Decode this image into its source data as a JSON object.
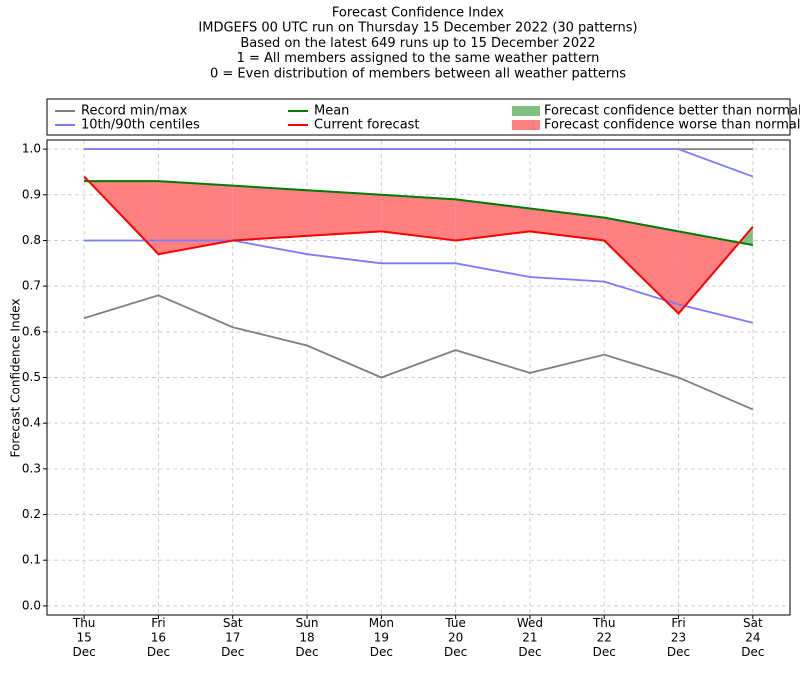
{
  "chart_data": {
    "type": "line",
    "title": "Forecast Confidence Index",
    "subtitles": [
      "IMDGEFS 00 UTC run on Thursday 15 December 2022 (30 patterns)",
      "Based on the latest 649 runs up to 15 December 2022",
      "1 = All members assigned to the same weather pattern",
      "0 = Even distribution of members between all weather patterns"
    ],
    "y_label": "Forecast Confidence Index",
    "categories": [
      "Thu 15 Dec",
      "Fri 16 Dec",
      "Sat 17 Dec",
      "Sun 18 Dec",
      "Mon 19 Dec",
      "Tue 20 Dec",
      "Wed 21 Dec",
      "Thu 22 Dec",
      "Fri 23 Dec",
      "Sat 24 Dec"
    ],
    "ylim": [
      -0.02,
      1.02
    ],
    "yticks": [
      {
        "value": 0,
        "label": "0.0"
      },
      0.1,
      0.2,
      0.3,
      0.4,
      0.5,
      0.6,
      0.7,
      0.8,
      0.9,
      {
        "value": 1,
        "label": "1.0"
      }
    ],
    "grid": true,
    "series": [
      {
        "name": "Record min/max",
        "color": "#808080",
        "min": [
          0.63,
          0.68,
          0.61,
          0.57,
          0.5,
          0.56,
          0.51,
          0.55,
          0.5,
          0.43
        ],
        "max": [
          1,
          1,
          1,
          1,
          1,
          1,
          1,
          1,
          1,
          1
        ]
      },
      {
        "name": "10th/90th centiles",
        "color": "#7b7bff",
        "min": [
          0.8,
          0.8,
          0.8,
          0.77,
          0.75,
          0.75,
          0.72,
          0.71,
          0.66,
          0.62
        ],
        "max": [
          1,
          1,
          1,
          1,
          1,
          1,
          1,
          1,
          1,
          0.94
        ]
      },
      {
        "name": "Mean",
        "color": "#007a00",
        "values": [
          0.93,
          0.93,
          0.92,
          0.91,
          0.9,
          0.89,
          0.87,
          0.85,
          0.82,
          0.79
        ]
      },
      {
        "name": "Current forecast",
        "color": "#ff0000",
        "values": [
          0.94,
          0.77,
          0.8,
          0.81,
          0.82,
          0.8,
          0.82,
          0.8,
          0.64,
          0.83
        ]
      }
    ],
    "fills": [
      {
        "name": "Forecast confidence better than normal",
        "color": "#7fbf7f"
      },
      {
        "name": "Forecast confidence worse than normal",
        "color": "#ff8080"
      }
    ]
  }
}
